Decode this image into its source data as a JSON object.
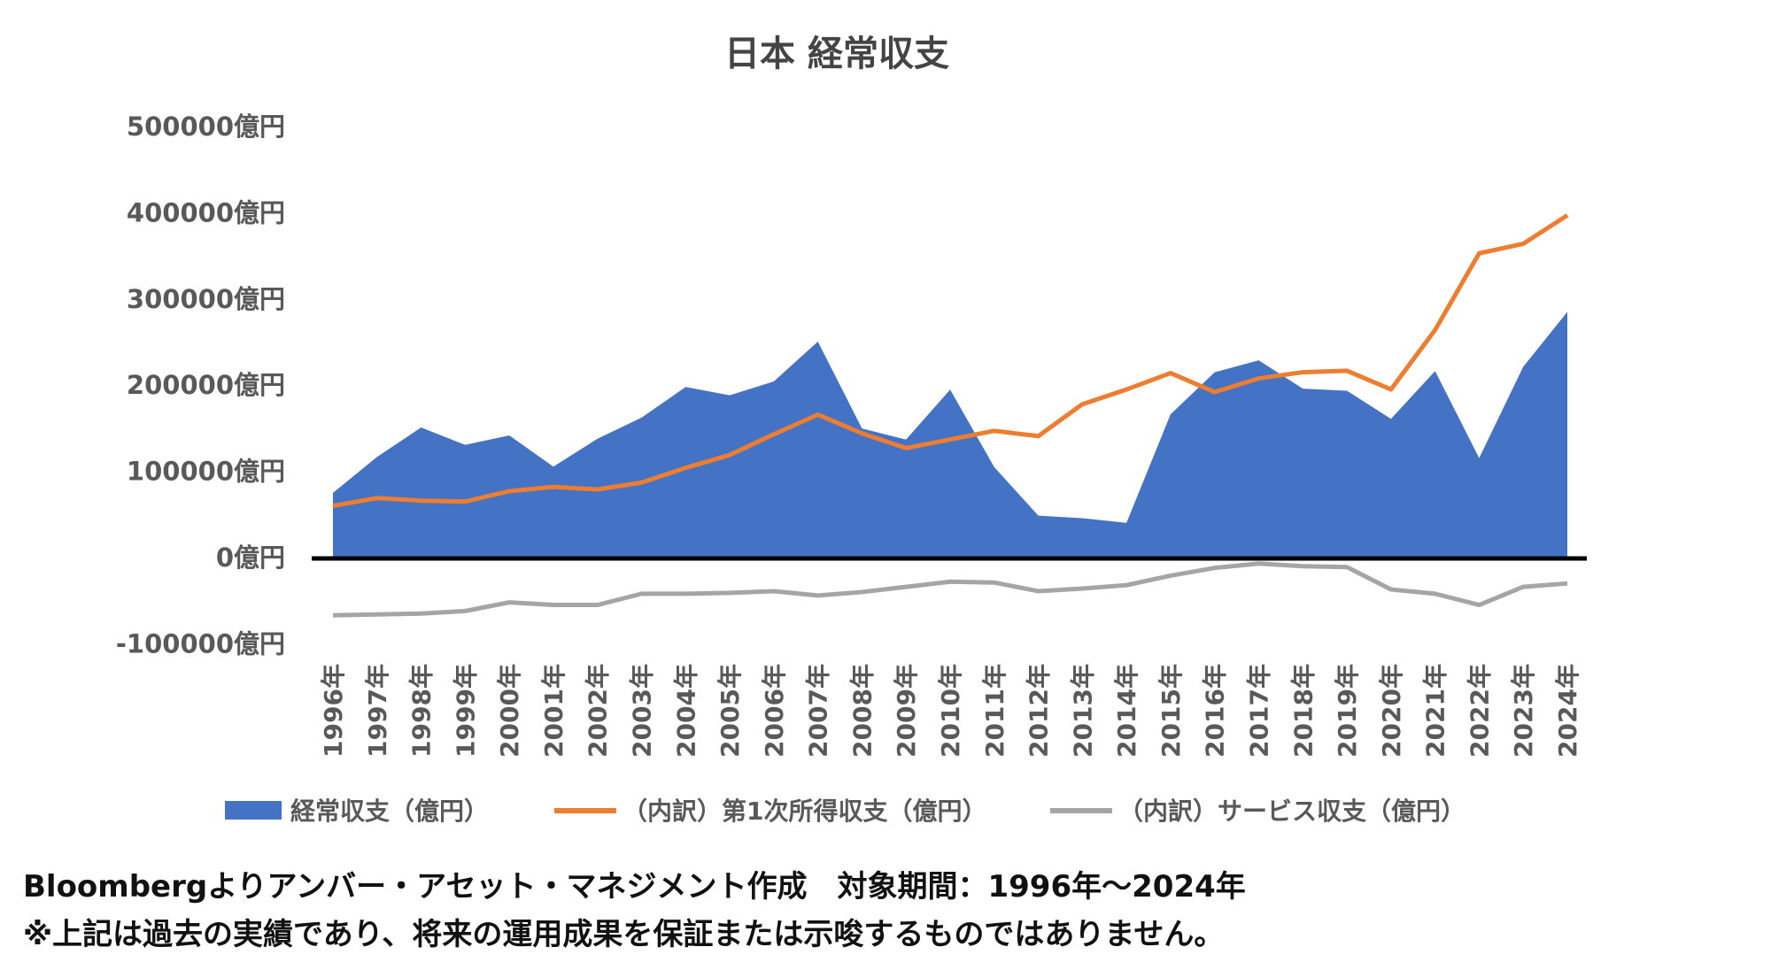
{
  "chart_data": {
    "type": "area+line",
    "title": "日本 経常収支",
    "categories": [
      "1996年",
      "1997年",
      "1998年",
      "1999年",
      "2000年",
      "2001年",
      "2002年",
      "2003年",
      "2004年",
      "2005年",
      "2006年",
      "2007年",
      "2008年",
      "2009年",
      "2010年",
      "2011年",
      "2012年",
      "2013年",
      "2014年",
      "2015年",
      "2016年",
      "2017年",
      "2018年",
      "2019年",
      "2020年",
      "2021年",
      "2022年",
      "2023年",
      "2024年"
    ],
    "yticks": [
      -100000,
      0,
      100000,
      200000,
      300000,
      400000,
      500000
    ],
    "ytick_labels": [
      "-100000億円",
      "0億円",
      "100000億円",
      "200000億円",
      "300000億円",
      "400000億円",
      "500000億円"
    ],
    "ylim": [
      -100000,
      500000
    ],
    "series": [
      {
        "name": "経常収支（億円）",
        "type": "area",
        "color": "#4472C4",
        "values": [
          74000,
          115700,
          149900,
          129700,
          140600,
          104500,
          136800,
          161300,
          196900,
          187300,
          203300,
          249500,
          148800,
          135900,
          193800,
          104000,
          47600,
          44600,
          39300,
          165200,
          213900,
          227800,
          195000,
          192500,
          159900,
          215400,
          114400,
          220300,
          284000
        ]
      },
      {
        "name": "（内訳）第1次所得収支（億円）",
        "type": "line",
        "color": "#ED7D31",
        "values": [
          59000,
          68000,
          65000,
          64000,
          76000,
          81000,
          78000,
          86000,
          103000,
          118000,
          142000,
          164800,
          143000,
          126000,
          136000,
          146000,
          139900,
          176900,
          194000,
          213000,
          191000,
          206800,
          214000,
          215700,
          194000,
          263000,
          351900,
          363000,
          396000
        ]
      },
      {
        "name": "（内訳）サービス収支（億円）",
        "type": "line",
        "color": "#A5A5A5",
        "values": [
          -68000,
          -67000,
          -66000,
          -63000,
          -53000,
          -56000,
          -56000,
          -43000,
          -43000,
          -42000,
          -40000,
          -45000,
          -41000,
          -35000,
          -29000,
          -30000,
          -40000,
          -37000,
          -33000,
          -22000,
          -13000,
          -8000,
          -11000,
          -12000,
          -38000,
          -43000,
          -56000,
          -35000,
          -31000
        ]
      }
    ],
    "legend_position": "bottom"
  },
  "footer": {
    "line1": "Bloombergよりアンバー・アセット・マネジメント作成　対象期間：1996年～2024年",
    "line2": "※上記は過去の実績であり、将来の運用成果を保証または示唆するものではありません。"
  }
}
